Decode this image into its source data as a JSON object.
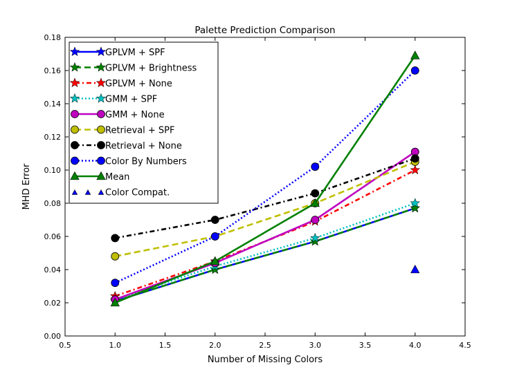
{
  "chart_data": {
    "type": "line",
    "title": "Palette Prediction Comparison",
    "xlabel": "Number of Missing Colors",
    "ylabel": "MHD Error",
    "xlim": [
      0.5,
      4.5
    ],
    "ylim": [
      0.0,
      0.18
    ],
    "xticks": [
      "0.5",
      "1.0",
      "1.5",
      "2.0",
      "2.5",
      "3.0",
      "3.5",
      "4.0",
      "4.5"
    ],
    "yticks": [
      "0.00",
      "0.02",
      "0.04",
      "0.06",
      "0.08",
      "0.10",
      "0.12",
      "0.14",
      "0.16",
      "0.18"
    ],
    "grid": false,
    "legend_position": "upper-left",
    "x": [
      1.0,
      2.0,
      3.0,
      4.0
    ],
    "series": [
      {
        "name": "GPLVM + SPF",
        "values": [
          0.021,
          0.04,
          0.057,
          0.077
        ],
        "color": "#0000ff",
        "style": "solid",
        "marker": "star"
      },
      {
        "name": "GPLVM + Brightness",
        "values": [
          0.021,
          0.04,
          0.057,
          0.077
        ],
        "color": "#008000",
        "style": "dashed",
        "marker": "star"
      },
      {
        "name": "GPLVM + None",
        "values": [
          0.024,
          0.045,
          0.069,
          0.1
        ],
        "color": "#ff0000",
        "style": "dashdot",
        "marker": "star"
      },
      {
        "name": "GMM + SPF",
        "values": [
          0.022,
          0.042,
          0.059,
          0.08
        ],
        "color": "#00bfbf",
        "style": "dotted",
        "marker": "star"
      },
      {
        "name": "GMM + None",
        "values": [
          0.022,
          0.044,
          0.07,
          0.111
        ],
        "color": "#bf00bf",
        "style": "solid",
        "marker": "circle"
      },
      {
        "name": "Retrieval + SPF",
        "values": [
          0.048,
          0.06,
          0.08,
          0.105
        ],
        "color": "#bfbf00",
        "style": "dashed",
        "marker": "circle"
      },
      {
        "name": "Retrieval + None",
        "values": [
          0.059,
          0.07,
          0.086,
          0.107
        ],
        "color": "#000000",
        "style": "dashdot",
        "marker": "circle"
      },
      {
        "name": "Color By Numbers",
        "values": [
          0.032,
          0.06,
          0.102,
          0.16
        ],
        "color": "#0000ff",
        "style": "dotted",
        "marker": "circle"
      },
      {
        "name": "Mean",
        "values": [
          0.02,
          0.045,
          0.08,
          0.169
        ],
        "color": "#008000",
        "style": "solid",
        "marker": "triangle"
      },
      {
        "name": "Color Compat.",
        "values": [
          null,
          null,
          null,
          0.04
        ],
        "color": "#0000ff",
        "style": "none",
        "marker": "triangle"
      }
    ]
  }
}
